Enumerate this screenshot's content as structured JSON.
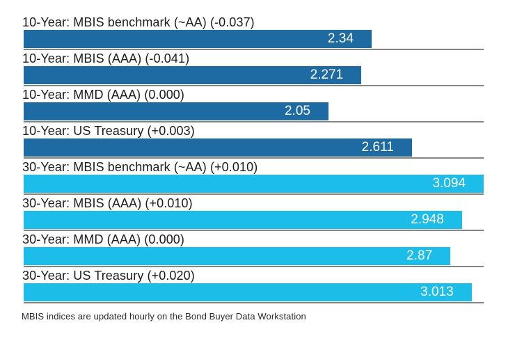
{
  "chart_data": {
    "type": "bar",
    "orientation": "horizontal",
    "title": "",
    "xlim": [
      0,
      3.094
    ],
    "grid": false,
    "legend": false,
    "footnote": "MBIS indices are updated hourly on the Bond Buyer Data Workstation",
    "groups": [
      {
        "name": "10-Year",
        "color": "#1e6ba4"
      },
      {
        "name": "30-Year",
        "color": "#1cbde9"
      }
    ],
    "rows": [
      {
        "label": "10-Year: MBIS benchmark (~AA) (-0.037)",
        "value": 2.34,
        "display": "2.34",
        "group": 0
      },
      {
        "label": "10-Year: MBIS (AAA) (-0.041)",
        "value": 2.271,
        "display": "2.271",
        "group": 0
      },
      {
        "label": "10-Year: MMD (AAA) (0.000)",
        "value": 2.05,
        "display": "2.05",
        "group": 0
      },
      {
        "label": "10-Year: US Treasury (+0.003)",
        "value": 2.611,
        "display": "2.611",
        "group": 0
      },
      {
        "label": "30-Year: MBIS benchmark (~AA) (+0.010)",
        "value": 3.094,
        "display": "3.094",
        "group": 1
      },
      {
        "label": "30-Year: MBIS (AAA) (+0.010)",
        "value": 2.948,
        "display": "2.948",
        "group": 1
      },
      {
        "label": "30-Year: MMD (AAA) (0.000)",
        "value": 2.87,
        "display": "2.87",
        "group": 1
      },
      {
        "label": "30-Year: US Treasury (+0.020)",
        "value": 3.013,
        "display": "3.013",
        "group": 1
      }
    ],
    "colors": {
      "separator": "#848484",
      "label_text": "#1c1c1c",
      "value_text": "#ffffff",
      "background": "#ffffff"
    }
  }
}
